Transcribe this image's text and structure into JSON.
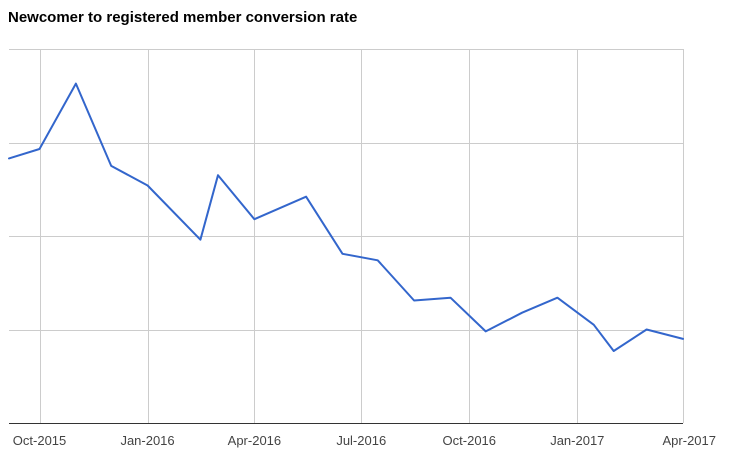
{
  "chart_data": {
    "type": "line",
    "title": "Newcomer to registered member conversion rate",
    "xlabel": "",
    "ylabel": "",
    "x_ticks": [
      "Oct-2015",
      "Jan-2016",
      "Apr-2016",
      "Jul-2016",
      "Oct-2016",
      "Jan-2017",
      "Apr-2017"
    ],
    "x_range": [
      "2015-09-05",
      "2017-04-01"
    ],
    "y_tick_labels_visible": false,
    "y_gridlines": 4,
    "y_range": [
      0,
      4
    ],
    "grid": true,
    "legend": "none",
    "series": [
      {
        "color": "#3366cc",
        "points": [
          {
            "x": "2015-09-05",
            "y": 2.83
          },
          {
            "x": "2015-10-01",
            "y": 2.93
          },
          {
            "x": "2015-11-01",
            "y": 3.63
          },
          {
            "x": "2015-12-01",
            "y": 2.75
          },
          {
            "x": "2016-01-01",
            "y": 2.54
          },
          {
            "x": "2016-02-15",
            "y": 1.96
          },
          {
            "x": "2016-03-01",
            "y": 2.65
          },
          {
            "x": "2016-04-01",
            "y": 2.18
          },
          {
            "x": "2016-05-15",
            "y": 2.42
          },
          {
            "x": "2016-06-15",
            "y": 1.81
          },
          {
            "x": "2016-07-15",
            "y": 1.74
          },
          {
            "x": "2016-08-15",
            "y": 1.31
          },
          {
            "x": "2016-09-15",
            "y": 1.34
          },
          {
            "x": "2016-10-15",
            "y": 0.98
          },
          {
            "x": "2016-11-15",
            "y": 1.18
          },
          {
            "x": "2016-12-15",
            "y": 1.34
          },
          {
            "x": "2017-01-15",
            "y": 1.05
          },
          {
            "x": "2017-02-01",
            "y": 0.77
          },
          {
            "x": "2017-03-01",
            "y": 1.0
          },
          {
            "x": "2017-04-01",
            "y": 0.9
          }
        ]
      }
    ]
  }
}
